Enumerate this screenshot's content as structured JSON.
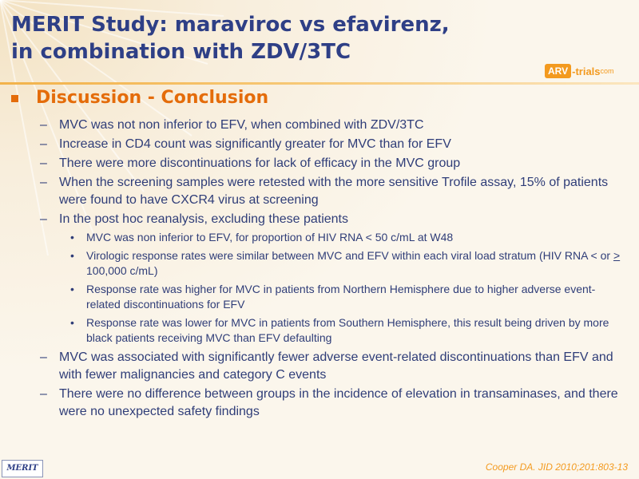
{
  "title": {
    "line1": "MERIT Study: maraviroc vs efavirenz,",
    "line2": "in combination with ZDV/3TC"
  },
  "logo": {
    "badge": "ARV",
    "text": "-trials",
    "suffix": "com"
  },
  "heading": "Discussion - Conclusion",
  "items": [
    {
      "text": "MVC was not non inferior to EFV, when combined with ZDV/3TC"
    },
    {
      "text": "Increase in CD4 count was significantly greater for MVC than for EFV"
    },
    {
      "text": "There were more discontinuations for lack of efficacy in the MVC group"
    },
    {
      "text": "When the screening samples were retested with the more sensitive Trofile assay, 15% of patients were found to have CXCR4 virus at screening"
    },
    {
      "text": "In the post hoc reanalysis, excluding these patients",
      "subitems": [
        {
          "text": "MVC was non inferior to EFV, for proportion of HIV RNA < 50 c/mL at W48"
        },
        {
          "text_before": "Virologic response rates were similar between MVC and EFV within each viral load stratum (HIV RNA < or ",
          "symbol": ">",
          "text_after": " 100,000 c/mL)"
        },
        {
          "text": "Response rate was higher for MVC in patients from Northern Hemisphere due to higher adverse event-related discontinuations for EFV"
        },
        {
          "text": "Response rate was lower for MVC in patients from Southern Hemisphere, this result being driven by more black patients receiving MVC than EFV defaulting"
        }
      ]
    },
    {
      "text": "MVC was associated with significantly fewer adverse event-related discontinuations than EFV and with fewer malignancies and category C events"
    },
    {
      "text": "There were no difference between groups in the incidence of elevation in transaminases, and there were no unexpected safety findings"
    }
  ],
  "footer": {
    "badge": "MERIT",
    "citation": "Cooper DA. JID 2010;201:803-13"
  },
  "colors": {
    "title": "#2e3f86",
    "heading": "#e46c0a",
    "body": "#2f3d78",
    "accent": "#f39a1f"
  }
}
